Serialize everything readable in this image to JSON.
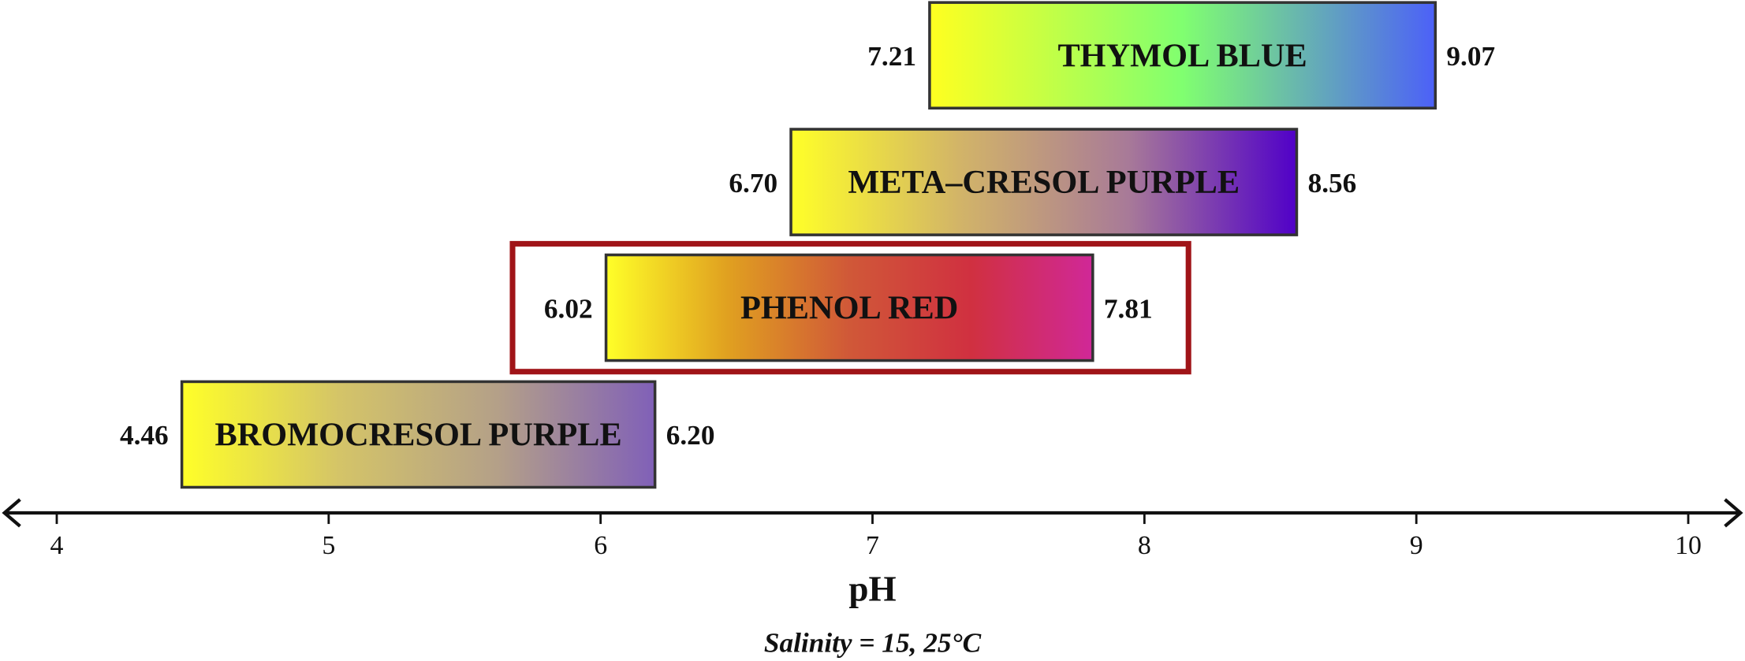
{
  "chart_data": {
    "type": "bar",
    "orientation": "horizontal-range",
    "xlabel": "pH",
    "subtitle": "Salinity = 15, 25°C",
    "xlim": [
      4,
      10
    ],
    "xticks": [
      4,
      5,
      6,
      7,
      8,
      9,
      10
    ],
    "series": [
      {
        "name": "THYMOL BLUE",
        "start": 7.21,
        "end": 9.07,
        "start_label": "7.21",
        "end_label": "9.07",
        "colors": [
          "#ffff20",
          "#80ff70",
          "#4c60f8"
        ],
        "highlighted": false
      },
      {
        "name": "META–CRESOL PURPLE",
        "start": 6.7,
        "end": 8.56,
        "start_label": "6.70",
        "end_label": "8.56",
        "colors": [
          "#ffff28",
          "#d2b468",
          "#a87a98",
          "#5000c8"
        ],
        "highlighted": false
      },
      {
        "name": "PHENOL RED",
        "start": 6.02,
        "end": 7.81,
        "start_label": "6.02",
        "end_label": "7.81",
        "colors": [
          "#ffff28",
          "#e0a020",
          "#d05838",
          "#d03040",
          "#d02898"
        ],
        "highlighted": true
      },
      {
        "name": "BROMOCRESOL PURPLE",
        "start": 4.46,
        "end": 6.2,
        "start_label": "4.46",
        "end_label": "6.20",
        "colors": [
          "#ffff28",
          "#d4c468",
          "#b4a088",
          "#8060b8"
        ],
        "highlighted": false
      }
    ],
    "highlight_color": "#a01418"
  }
}
